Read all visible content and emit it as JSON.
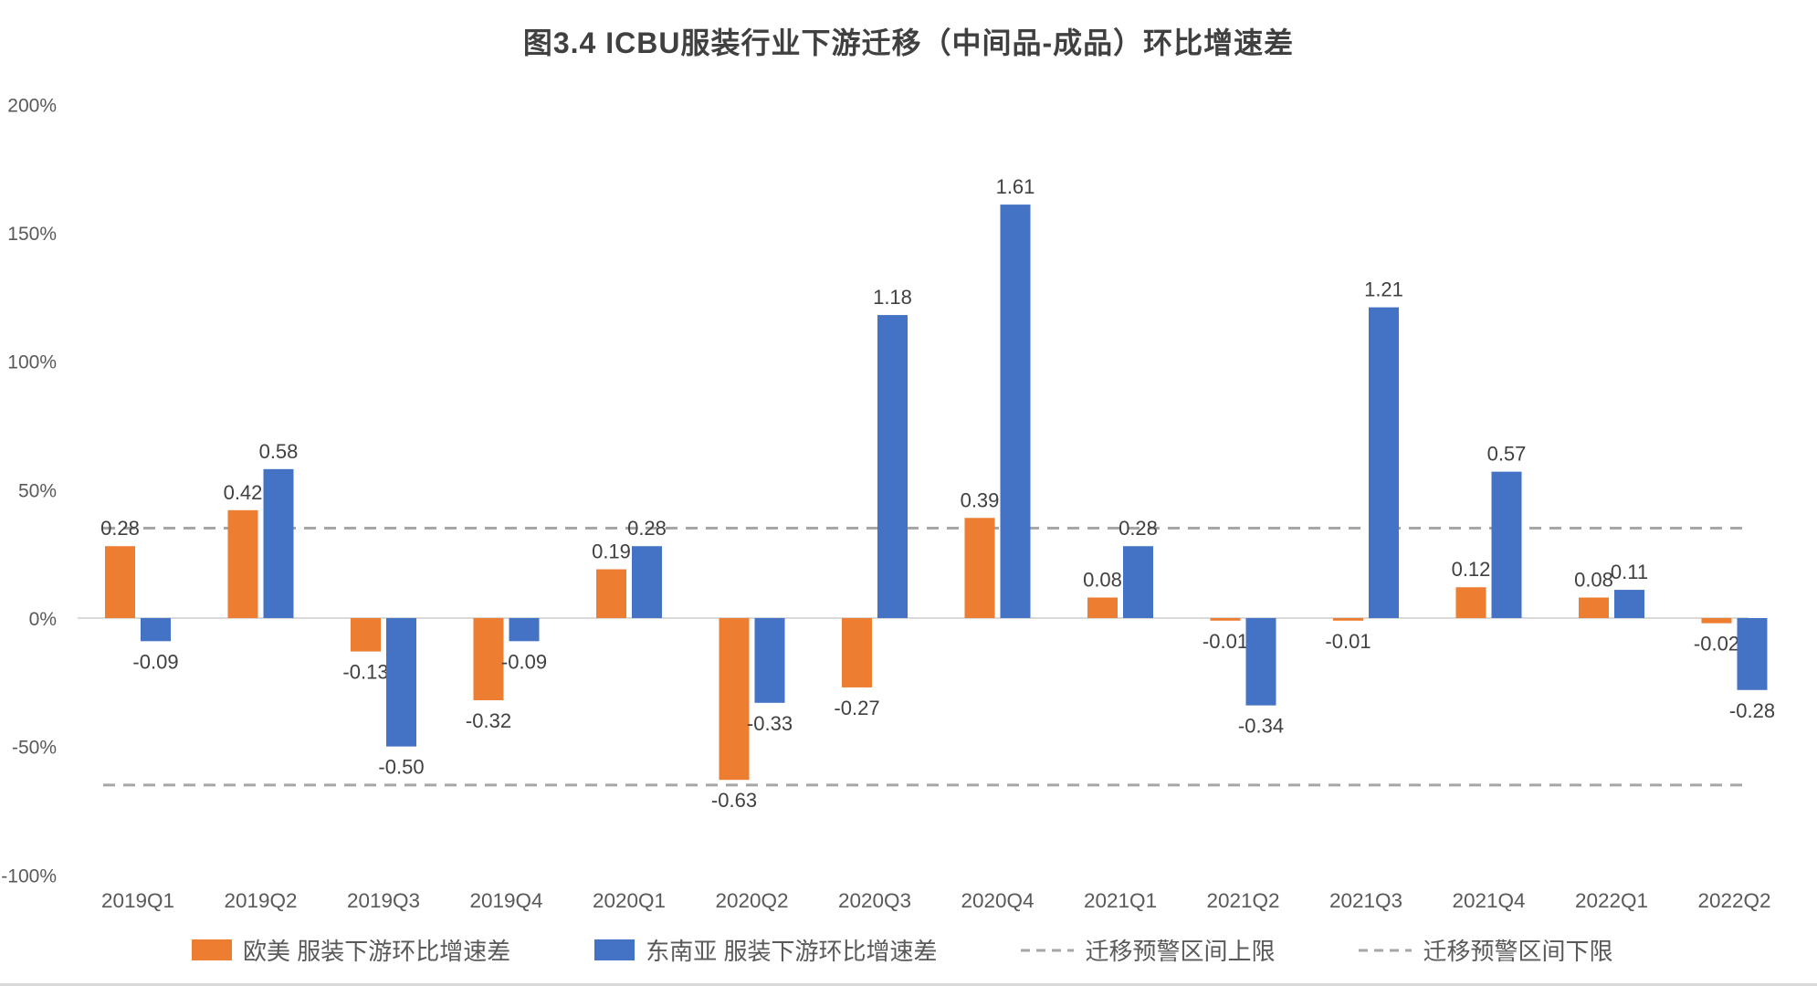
{
  "title": "图3.4 ICBU服装行业下游迁移（中间品-成品）环比增速差",
  "chart_data": {
    "type": "bar",
    "categories": [
      "2019Q1",
      "2019Q2",
      "2019Q3",
      "2019Q4",
      "2020Q1",
      "2020Q2",
      "2020Q3",
      "2020Q4",
      "2021Q1",
      "2021Q2",
      "2021Q3",
      "2021Q4",
      "2022Q1",
      "2022Q2"
    ],
    "series": [
      {
        "name": "欧美 服装下游环比增速差",
        "color": "#ED7D31",
        "values": [
          0.28,
          0.42,
          -0.13,
          -0.32,
          0.19,
          -0.63,
          -0.27,
          0.39,
          0.08,
          -0.01,
          -0.01,
          0.12,
          0.08,
          -0.02
        ]
      },
      {
        "name": "东南亚 服装下游环比增速差",
        "color": "#4472C4",
        "values": [
          -0.09,
          0.58,
          -0.5,
          -0.09,
          0.28,
          -0.33,
          1.18,
          1.61,
          0.28,
          -0.34,
          1.21,
          0.57,
          0.11,
          -0.28
        ]
      }
    ],
    "ref_lines": [
      {
        "name": "迁移预警区间上限",
        "value": 0.35,
        "color": "#A6A6A6",
        "style": "dashed"
      },
      {
        "name": "迁移预警区间下限",
        "value": -0.65,
        "color": "#A6A6A6",
        "style": "dashed"
      }
    ],
    "y_ticks": [
      "200%",
      "150%",
      "100%",
      "50%",
      "0%",
      "-50%",
      "-100%"
    ],
    "y_tick_values": [
      2.0,
      1.5,
      1.0,
      0.5,
      0.0,
      -0.5,
      -1.0
    ],
    "ylim": [
      -1.0,
      2.0
    ],
    "grid": false,
    "legend_position": "bottom",
    "value_label_decimals": 2
  },
  "colors": {
    "title_text": "#404040",
    "axis_text": "#595959",
    "data_label_text": "#404040",
    "zero_line": "#D9D9D9",
    "ref_line": "#A6A6A6",
    "series_west": "#ED7D31",
    "series_sea": "#4472C4"
  }
}
